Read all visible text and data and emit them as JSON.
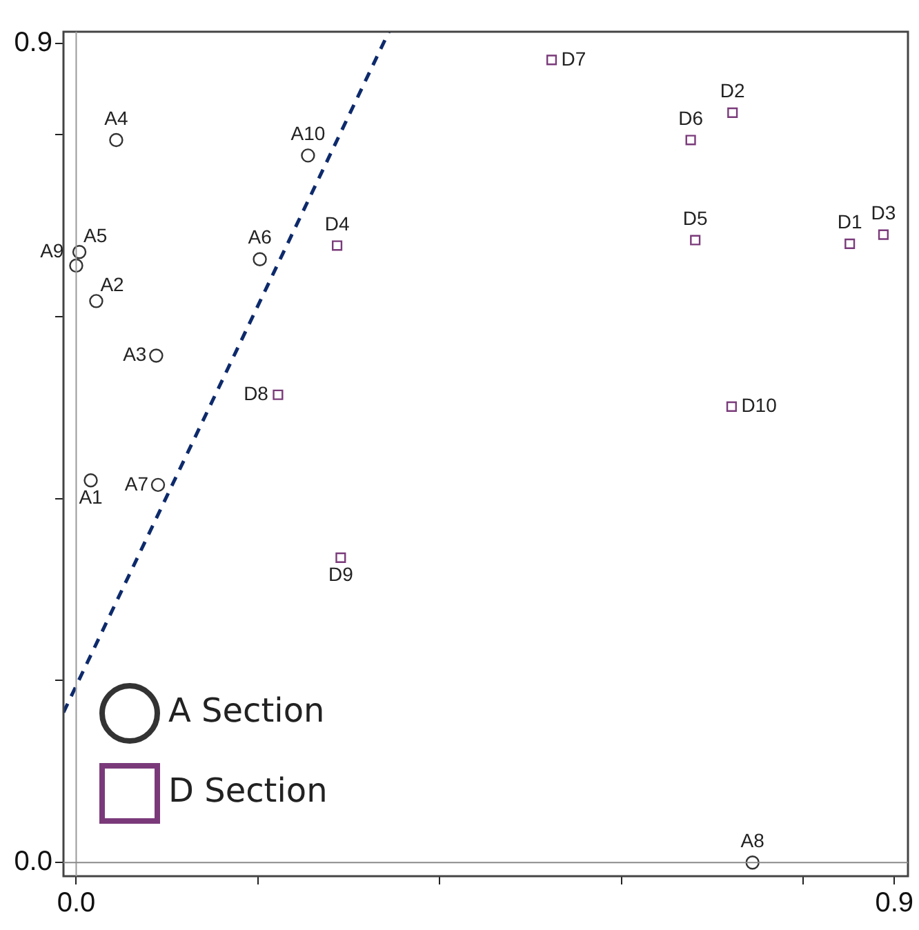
{
  "chart_data": {
    "type": "scatter",
    "xlim": [
      -0.014,
      0.915
    ],
    "ylim": [
      -0.015,
      0.913
    ],
    "xticks": [
      {
        "value": 0,
        "label": "0.0"
      },
      {
        "value": 0.2,
        "label": null
      },
      {
        "value": 0.4,
        "label": null
      },
      {
        "value": 0.6,
        "label": null
      },
      {
        "value": 0.8,
        "label": null
      },
      {
        "value": 0.9,
        "label": "0.9"
      }
    ],
    "yticks": [
      {
        "value": 0,
        "label": "0.0"
      },
      {
        "value": 0.2,
        "label": null
      },
      {
        "value": 0.4,
        "label": null
      },
      {
        "value": 0.6,
        "label": null
      },
      {
        "value": 0.8,
        "label": null
      },
      {
        "value": 0.9,
        "label": "0.9"
      }
    ],
    "grid": false,
    "legend": "bottom left",
    "ref_lines": [
      {
        "axis": "x",
        "value": 0,
        "color": "#9a9a9a"
      },
      {
        "axis": "y",
        "value": 0,
        "color": "#8a8a8a"
      }
    ],
    "series": [
      {
        "name": "A Section",
        "color": "#333333",
        "marker": "circle",
        "x": [
          0.016,
          0.022,
          0.088,
          0.044,
          0.0035,
          0.202,
          0.09,
          0.744,
          0.0,
          0.255
        ],
        "values": [
          0.42,
          0.617,
          0.557,
          0.794,
          0.671,
          0.663,
          0.415,
          0.0,
          0.656,
          0.777
        ]
      },
      {
        "name": "D Section",
        "color": "#7a3a7a",
        "marker": "square",
        "x": [
          0.851,
          0.722,
          0.888,
          0.287,
          0.681,
          0.676,
          0.523,
          0.222,
          0.291,
          0.721
        ],
        "values": [
          0.68,
          0.824,
          0.69,
          0.678,
          0.684,
          0.794,
          0.882,
          0.514,
          0.335,
          0.501
        ]
      },
      {
        "type": "line",
        "color": "#0d2a6b",
        "marker": "none",
        "line_style": "dashed",
        "x": [
          -0.014,
          0.344
        ],
        "values": [
          0.165,
          0.913
        ]
      }
    ],
    "annotations": [
      {
        "text": "A1",
        "x": 0.016,
        "y": 0.42
      },
      {
        "text": "A2",
        "x": 0.022,
        "y": 0.617
      },
      {
        "text": "A3",
        "x": 0.088,
        "y": 0.557
      },
      {
        "text": "A4",
        "x": 0.044,
        "y": 0.794
      },
      {
        "text": "A5",
        "x": 0.0035,
        "y": 0.671
      },
      {
        "text": "A6",
        "x": 0.202,
        "y": 0.663
      },
      {
        "text": "A7",
        "x": 0.09,
        "y": 0.415
      },
      {
        "text": "A8",
        "x": 0.744,
        "y": 0.0
      },
      {
        "text": "A9",
        "x": 0.0,
        "y": 0.656
      },
      {
        "text": "A10",
        "x": 0.255,
        "y": 0.777
      },
      {
        "text": "D1",
        "x": 0.851,
        "y": 0.68
      },
      {
        "text": "D2",
        "x": 0.722,
        "y": 0.824
      },
      {
        "text": "D3",
        "x": 0.888,
        "y": 0.69
      },
      {
        "text": "D4",
        "x": 0.287,
        "y": 0.678
      },
      {
        "text": "D5",
        "x": 0.681,
        "y": 0.684
      },
      {
        "text": "D6",
        "x": 0.676,
        "y": 0.794
      },
      {
        "text": "D7",
        "x": 0.523,
        "y": 0.882
      },
      {
        "text": "D8",
        "x": 0.222,
        "y": 0.514
      },
      {
        "text": "D9",
        "x": 0.291,
        "y": 0.335
      },
      {
        "text": "D10",
        "x": 0.721,
        "y": 0.501
      }
    ]
  }
}
